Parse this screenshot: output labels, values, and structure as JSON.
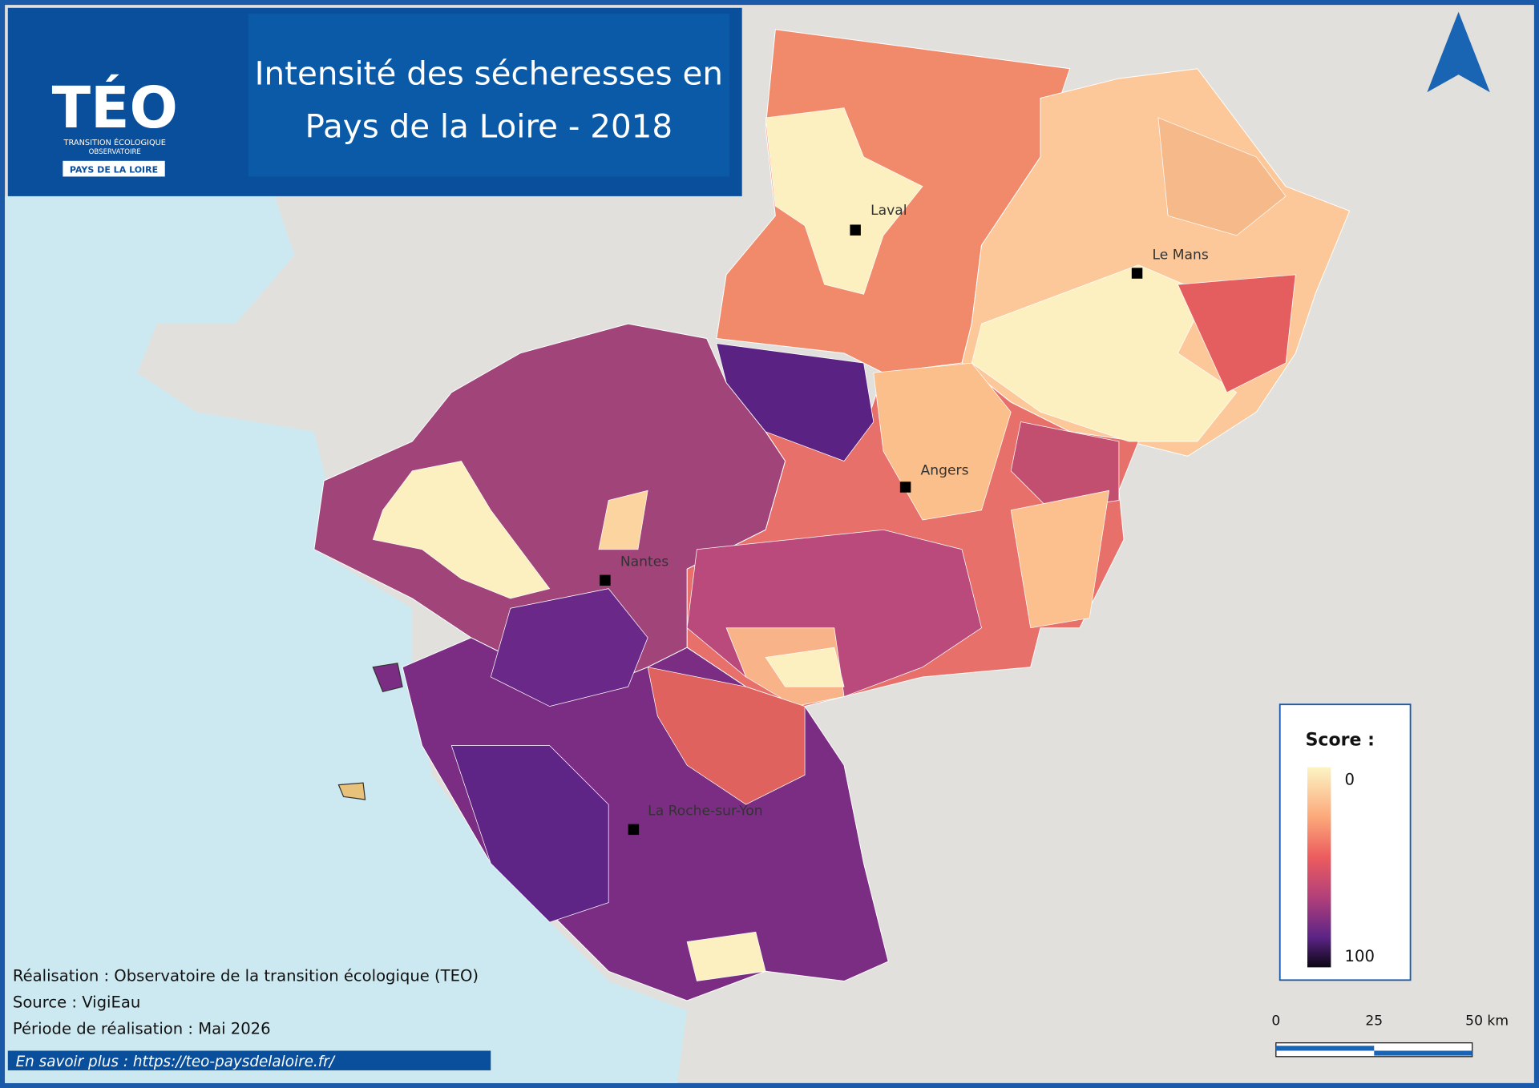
{
  "header": {
    "title_line1": "Intensité des sécheresses en",
    "title_line2": "Pays de la Loire - 2018"
  },
  "logo": {
    "name": "TÉO",
    "line1": "TRANSITION ÉCOLOGIQUE",
    "line2": "OBSERVATOIRE",
    "region": "PAYS DE LA LOIRE"
  },
  "cities": [
    "Laval",
    "Le Mans",
    "Angers",
    "Nantes",
    "La Roche-sur-Yon"
  ],
  "legend": {
    "title": "Score :",
    "min": 0,
    "max": 100
  },
  "scale_bar": {
    "labels": [
      "0",
      "25",
      "50 km"
    ]
  },
  "credits": [
    "Réalisation : Observatoire de la transition écologique (TEO)",
    "Source : VigiEau",
    "Période de réalisation : Mai 2026"
  ],
  "link": "En savoir plus : https://teo-paysdelaloire.fr/"
}
